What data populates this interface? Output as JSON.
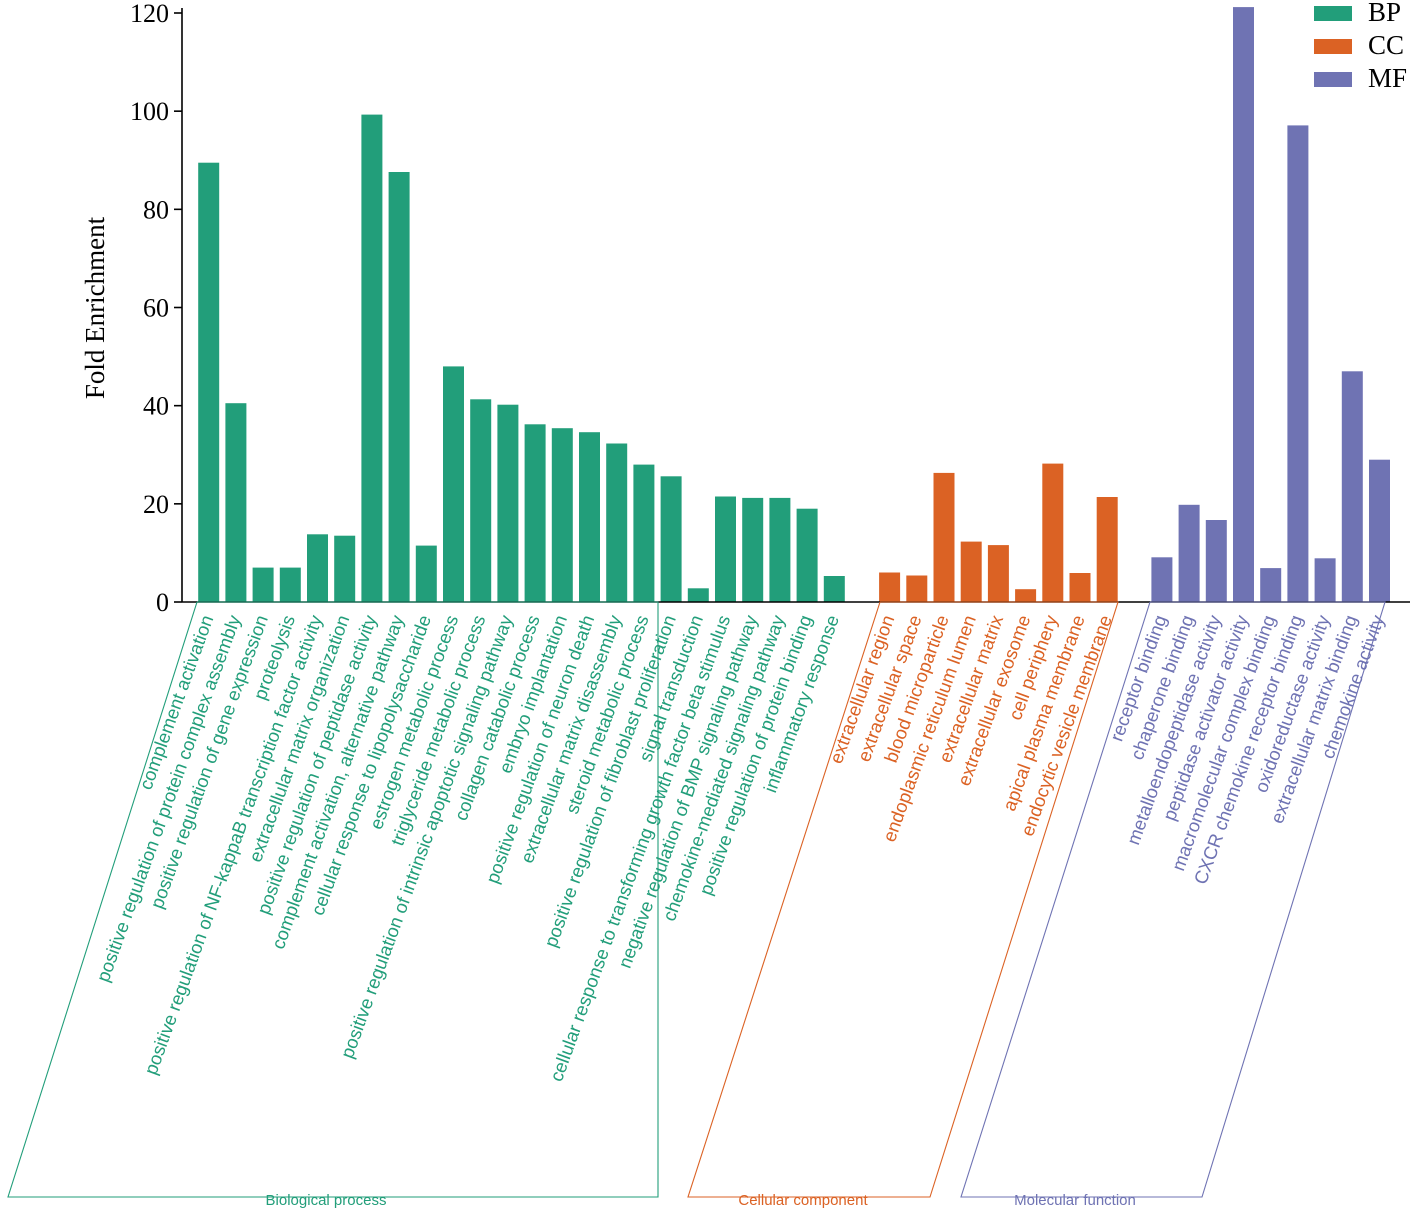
{
  "chart_data": {
    "type": "bar",
    "title": "",
    "xlabel": "",
    "ylabel": "Fold Enrichment",
    "ylim": [
      0,
      120
    ],
    "yticks": [
      0,
      20,
      40,
      60,
      80,
      100,
      120
    ],
    "legend": {
      "position": "top-right",
      "entries": [
        {
          "label": "BP",
          "color": "#229E7A"
        },
        {
          "label": "CC",
          "color": "#DB6224"
        },
        {
          "label": "MF",
          "color": "#6F73B3"
        }
      ]
    },
    "groups": [
      {
        "key": "BP",
        "name": "Biological process",
        "color": "#229E7A",
        "categories": [
          "complement activation",
          "positive regulation of protein complex assembly",
          "positive regulation of gene expression",
          "proteolysis",
          "positive regulation of NF-kappaB transcription factor activity",
          "extracellular matrix organization",
          "positive regulation of peptidase activity",
          "complement activation, alternative pathway",
          "cellular response to lipopolysaccharide",
          "estrogen metabolic process",
          "triglyceride metabolic process",
          "positive regulation of intrinsic apoptotic signaling pathway",
          "collagen catabolic process",
          "embryo implantation",
          "positive regulation of neuron death",
          "extracellular matrix disassembly",
          "steroid metabolic process",
          "positive regulation of fibroblast proliferation",
          "signal transduction",
          "cellular response to transforming growth factor beta stimulus",
          "negative regulation of BMP signaling pathway",
          "chemokine-mediated signaling pathway",
          "positive regulation of protein binding",
          "inflammatory response"
        ],
        "values": [
          89.5,
          40.5,
          7,
          7,
          13.8,
          13.5,
          99.3,
          87.6,
          11.5,
          48,
          41.3,
          40.2,
          36.2,
          35.4,
          34.6,
          32.3,
          28,
          25.6,
          2.8,
          21.5,
          21.2,
          21.2,
          19,
          5.3
        ]
      },
      {
        "key": "CC",
        "name": "Cellular component",
        "color": "#DB6224",
        "categories": [
          "extracellular region",
          "extracellular space",
          "blood microparticle",
          "endoplasmic reticulum lumen",
          "extracellular matrix",
          "extracellular exosome",
          "cell periphery",
          "apical plasma membrane",
          "endocytic vesicle membrane"
        ],
        "values": [
          6,
          5.4,
          26.3,
          12.3,
          11.6,
          2.6,
          28.2,
          5.9,
          21.4
        ]
      },
      {
        "key": "MF",
        "name": "Molecular function",
        "color": "#6F73B3",
        "categories": [
          "receptor binding",
          "chaperone binding",
          "metalloendopeptidase activity",
          "peptidase activator activity",
          "macromolecular complex binding",
          "CXCR chemokine receptor binding",
          "oxidoreductase activity",
          "extracellular matrix binding",
          "chemokine activity"
        ],
        "values": [
          9.1,
          19.8,
          16.7,
          121.2,
          6.9,
          97.1,
          8.9,
          47,
          29
        ]
      }
    ]
  }
}
